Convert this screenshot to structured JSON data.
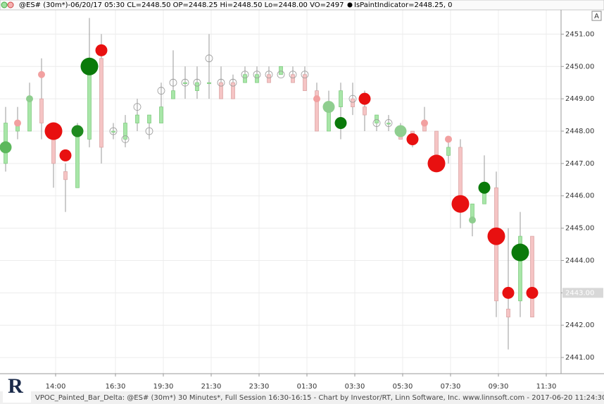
{
  "chart_data": {
    "type": "candlestick",
    "header": "@ES# (30m*)-06/20/17 05:30 CL=2448.50 OP=2448.25 Hi=2448.50 Lo=2448.00 VO=2497",
    "indicator": "IsPaintIndicator=2448.25, 0",
    "footer": "VPOC_Painted_Bar_Delta: @ES# (30m*) 30 Minutes*, Full Session 16:30-16:15 - Chart by Investor/RT, Linn Software, Inc. www.linnsoft.com - 2017-06-20 11:24:30",
    "button": "A",
    "categories": [
      null,
      null,
      null,
      null,
      "14:00",
      null,
      null,
      null,
      null,
      "16:30",
      null,
      null,
      null,
      "19:30",
      null,
      null,
      null,
      "21:30",
      null,
      null,
      null,
      "23:30",
      null,
      null,
      null,
      "01:30",
      null,
      null,
      null,
      "03:30",
      null,
      null,
      null,
      "05:30",
      null,
      null,
      null,
      "07:30",
      null,
      null,
      null,
      "09:30",
      null,
      null,
      null,
      "11:30"
    ],
    "open": [
      2447,
      2448,
      2448,
      2449,
      2448,
      2446.75,
      2446.25,
      2447.75,
      2450.25,
      2448,
      2447.75,
      2448.25,
      2448.25,
      2448.25,
      2449,
      2449.5,
      2449.25,
      2449.5,
      2449.5,
      2449.5,
      2449.5,
      2449.5,
      2449.75,
      2449.75,
      2449.75,
      2449.75,
      2449.25,
      2448,
      2448.75,
      2449,
      2448.75,
      2448.25,
      2448.25,
      2448,
      2448,
      2448.25,
      2448,
      2447.25,
      2447.5,
      2445.25,
      2445.75,
      2446.25,
      2442.5,
      2442.75,
      2444.75,
      null
    ],
    "high": [
      2448.75,
      2448.75,
      2449.5,
      2450.25,
      2448.25,
      2447,
      2448.25,
      2451.5,
      2451,
      2448.25,
      2448.5,
      2449,
      2448.5,
      2449.5,
      2450.5,
      2450,
      2450,
      2451,
      2450,
      2449.75,
      2450,
      2450,
      2450,
      2450,
      2450,
      2450,
      2449.5,
      2449.25,
      2449.5,
      2449.5,
      2449.25,
      2448.5,
      2448.5,
      2448.25,
      2448,
      2448.75,
      2448,
      2447.75,
      2447.75,
      2445.75,
      2447.25,
      2446.75,
      2445,
      2445.5,
      2444.75,
      null
    ],
    "low": [
      2446.75,
      2447.75,
      2448,
      2447.75,
      2446.25,
      2445.5,
      2446.25,
      2447.5,
      2447,
      2447.75,
      2447.5,
      2448,
      2447.75,
      2448.25,
      2449,
      2449,
      2449,
      2449,
      2449,
      2449,
      2449.5,
      2449.5,
      2449.5,
      2449.75,
      2449.5,
      2449.25,
      2448,
      2448,
      2447.75,
      2448.5,
      2448,
      2448,
      2448,
      2447.75,
      2447.5,
      2448,
      2446.75,
      2447,
      2445,
      2444.75,
      2445.75,
      2442.25,
      2441.25,
      2442.25,
      2442.25,
      null
    ],
    "close": [
      2448.25,
      2448.25,
      2449,
      2448.25,
      2447,
      2446.5,
      2448,
      2450,
      2447.5,
      2448,
      2448.25,
      2448.5,
      2448.5,
      2448.75,
      2449.25,
      2449.5,
      2449.5,
      2449.5,
      2449,
      2449,
      2449.75,
      2449.75,
      2449.5,
      2450,
      2449.5,
      2449.25,
      2448,
      2448.75,
      2449.25,
      2448.75,
      2448.5,
      2448.5,
      2448.25,
      2447.75,
      2447.75,
      2448,
      2447,
      2447.5,
      2445.5,
      2445.75,
      2446.25,
      2442.75,
      2442.25,
      2444.75,
      2442.25,
      null
    ],
    "vpoc": [
      2447.5,
      2448.25,
      2449,
      2449.75,
      2448,
      2447.25,
      2448,
      2450,
      2450.5,
      2448,
      2447.75,
      2448.75,
      2448,
      2449.25,
      2449.5,
      2449.5,
      2449.5,
      2450.25,
      2449.5,
      2449.5,
      2449.75,
      2449.75,
      2449.75,
      2449.75,
      2449.75,
      2449.75,
      2449,
      2448.75,
      2448.25,
      2449,
      2449,
      2448.25,
      2448.25,
      2448,
      2447.75,
      2448.25,
      2447,
      2447.75,
      2445.75,
      2445.25,
      2446.25,
      2444.75,
      2443,
      2444.25,
      2443,
      null
    ],
    "vpoc_color": [
      "#5cb85c",
      "#f2a0a0",
      "#8fce8f",
      "#f2a0a0",
      "#e81010",
      "#e81010",
      "#1e8a1e",
      "#0a7a0a",
      "#e81010",
      "#999999",
      "#999999",
      "#999999",
      "#999999",
      "#999999",
      "#999999",
      "#999999",
      "#999999",
      "#999999",
      "#999999",
      "#999999",
      "#999999",
      "#999999",
      "#999999",
      "#999999",
      "#999999",
      "#999999",
      "#f2a0a0",
      "#8fce8f",
      "#0a7a0a",
      "#999999",
      "#e81010",
      "#999999",
      "#999999",
      "#8fce8f",
      "#e81010",
      "#f2a0a0",
      "#e81010",
      "#f2a0a0",
      "#e81010",
      "#8fce8f",
      "#0a7a0a",
      "#e81010",
      "#e81010",
      "#0a7a0a",
      "#e81010",
      null
    ],
    "vpoc_size": [
      "medium",
      "small",
      "small",
      "small",
      "large",
      "medium",
      "medium",
      "large",
      "medium",
      "small",
      "small",
      "small",
      "small",
      "small",
      "small",
      "small",
      "small",
      "small",
      "small",
      "small",
      "small",
      "small",
      "small",
      "small",
      "small",
      "small",
      "small",
      "medium",
      "medium",
      "small",
      "medium",
      "small",
      "small",
      "medium",
      "medium",
      "small",
      "large",
      "small",
      "large",
      "small",
      "medium",
      "large",
      "medium",
      "large",
      "medium",
      null
    ],
    "ylim": [
      2440.5,
      2451.75
    ],
    "yticks": [
      {
        "value": 2441,
        "label": "2441.00"
      },
      {
        "value": 2442,
        "label": "2442.00"
      },
      {
        "value": 2443,
        "label": "2443.00"
      },
      {
        "value": 2444,
        "label": "2444.00"
      },
      {
        "value": 2445,
        "label": "2445.00"
      },
      {
        "value": 2446,
        "label": "2446.00"
      },
      {
        "value": 2447,
        "label": "2447.00"
      },
      {
        "value": 2448,
        "label": "2448.00"
      },
      {
        "value": 2449,
        "label": "2449.00"
      },
      {
        "value": 2450,
        "label": "2450.00"
      },
      {
        "value": 2451,
        "label": "2451.00"
      }
    ],
    "price_marker": {
      "value": 2443,
      "label": "2443.00"
    },
    "up_color": "#a8e6a8",
    "down_color": "#f5c4c4",
    "grid": true
  }
}
